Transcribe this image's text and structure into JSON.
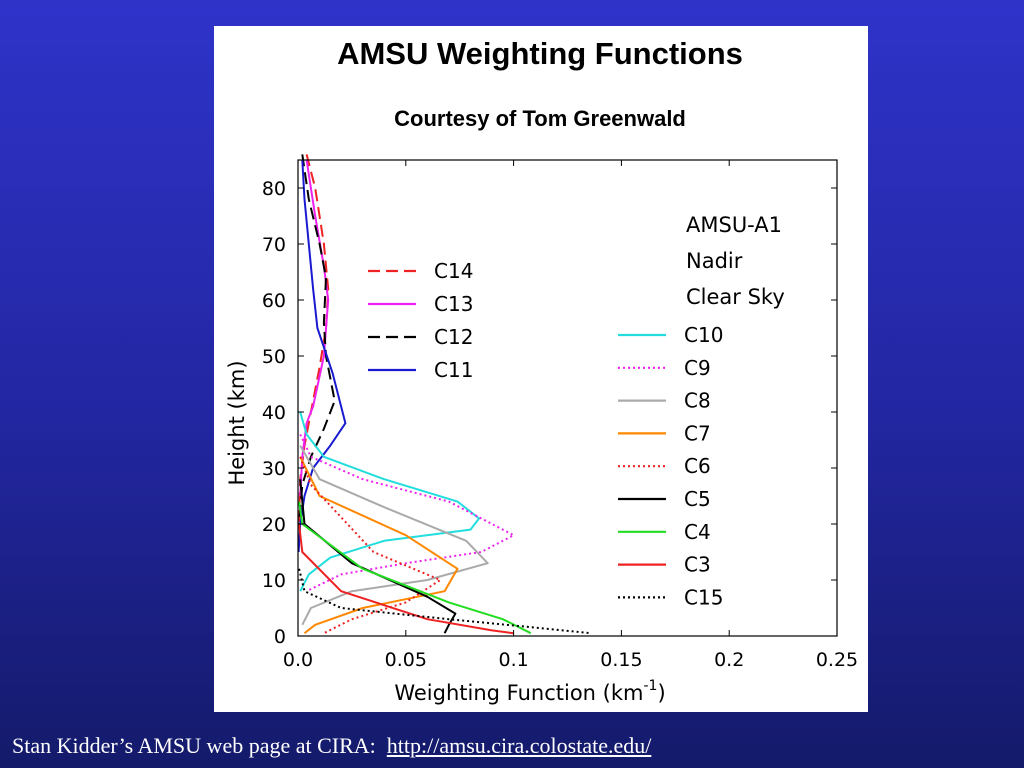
{
  "caption": {
    "text": "Stan Kidder’s AMSU web page at CIRA:",
    "link": "http://amsu.cira.colostate.edu/"
  },
  "chart_data": {
    "type": "line",
    "title": "AMSU Weighting Functions",
    "subtitle": "Courtesy of Tom Greenwald",
    "xlabel": "Weighting Function (km",
    "xlabel_sup": "-1",
    "xlabel_close": ")",
    "ylabel": "Height (km)",
    "xlim": [
      0,
      0.25
    ],
    "ylim": [
      0,
      85
    ],
    "x_ticks": [
      "0.0",
      "0.05",
      "0.1",
      "0.15",
      "0.2",
      "0.25"
    ],
    "x_tick_values": [
      0,
      0.05,
      0.1,
      0.15,
      0.2,
      0.25
    ],
    "y_ticks": [
      "0",
      "10",
      "20",
      "30",
      "40",
      "50",
      "60",
      "70",
      "80"
    ],
    "y_tick_values": [
      0,
      10,
      20,
      30,
      40,
      50,
      60,
      70,
      80
    ],
    "annotation": [
      "AMSU-A1",
      "Nadir",
      "Clear Sky"
    ],
    "series": [
      {
        "name": "C14",
        "color": "#ee2222",
        "dash": "long",
        "x": [
          0.004,
          0.008,
          0.012,
          0.014,
          0.013,
          0.01,
          0.006,
          0.003,
          0.001,
          0.0005
        ],
        "y": [
          86,
          80,
          70,
          62,
          55,
          48,
          40,
          34,
          28,
          20
        ]
      },
      {
        "name": "C13",
        "color": "#ee22ee",
        "dash": "solid",
        "x": [
          0.004,
          0.008,
          0.012,
          0.014,
          0.012,
          0.007,
          0.004,
          0.002,
          0.001
        ],
        "y": [
          85,
          75,
          66,
          60,
          50,
          41,
          38,
          32,
          25
        ]
      },
      {
        "name": "C12",
        "color": "#000000",
        "dash": "long",
        "x": [
          0.002,
          0.005,
          0.01,
          0.013,
          0.012,
          0.013,
          0.017,
          0.012,
          0.006,
          0.002,
          0.0005
        ],
        "y": [
          86,
          78,
          70,
          64,
          56,
          50,
          42,
          37,
          32,
          27,
          20
        ]
      },
      {
        "name": "C11",
        "color": "#1a1ad0",
        "dash": "solid",
        "x": [
          0.002,
          0.003,
          0.005,
          0.007,
          0.009,
          0.016,
          0.022,
          0.015,
          0.007,
          0.003,
          0.001,
          0.0003
        ],
        "y": [
          85,
          78,
          70,
          62,
          55,
          47,
          38,
          34,
          30,
          25,
          20,
          15
        ]
      },
      {
        "name": "C10",
        "color": "#22dddd",
        "dash": "solid",
        "x": [
          0.001,
          0.004,
          0.012,
          0.04,
          0.074,
          0.084,
          0.08,
          0.04,
          0.015,
          0.005,
          0.001
        ],
        "y": [
          40,
          36,
          32,
          28,
          24,
          21,
          19,
          17,
          14,
          11,
          8
        ]
      },
      {
        "name": "C9",
        "color": "#ee22ee",
        "dash": "dot",
        "x": [
          0.001,
          0.006,
          0.03,
          0.07,
          0.1,
          0.085,
          0.05,
          0.02,
          0.004
        ],
        "y": [
          36,
          32,
          28,
          24,
          18,
          15,
          13,
          11,
          8
        ]
      },
      {
        "name": "C8",
        "color": "#aaaaaa",
        "dash": "solid",
        "x": [
          0.001,
          0.01,
          0.04,
          0.078,
          0.088,
          0.06,
          0.025,
          0.006,
          0.002
        ],
        "y": [
          34,
          28,
          23,
          17,
          13,
          10,
          8,
          5,
          2
        ]
      },
      {
        "name": "C7",
        "color": "#ff8800",
        "dash": "solid",
        "x": [
          0.001,
          0.01,
          0.05,
          0.074,
          0.068,
          0.03,
          0.008,
          0.003
        ],
        "y": [
          32,
          25,
          18,
          12,
          8,
          5,
          2,
          0.5
        ]
      },
      {
        "name": "C6",
        "color": "#ee2222",
        "dash": "dot",
        "x": [
          0.001,
          0.006,
          0.035,
          0.066,
          0.05,
          0.025,
          0.012
        ],
        "y": [
          32,
          27,
          15,
          10,
          6,
          3,
          0.5
        ]
      },
      {
        "name": "C5",
        "color": "#000000",
        "dash": "solid",
        "x": [
          0.001,
          0.003,
          0.025,
          0.06,
          0.073,
          0.07,
          0.068
        ],
        "y": [
          28,
          20,
          13,
          7,
          4,
          2,
          0.5
        ]
      },
      {
        "name": "C4",
        "color": "#22dd22",
        "dash": "solid",
        "x": [
          0.0005,
          0.002,
          0.03,
          0.07,
          0.095,
          0.108
        ],
        "y": [
          24,
          20,
          12,
          6,
          3,
          0.5
        ]
      },
      {
        "name": "C3",
        "color": "#ee2222",
        "dash": "solid",
        "x": [
          0.0005,
          0.002,
          0.02,
          0.06,
          0.09,
          0.1
        ],
        "y": [
          20,
          15,
          8,
          3,
          1,
          0.5
        ]
      },
      {
        "name": "C15",
        "color": "#000000",
        "dash": "dot",
        "x": [
          0.0005,
          0.003,
          0.02,
          0.07,
          0.11,
          0.136
        ],
        "y": [
          12,
          8,
          5,
          3,
          1.5,
          0.5
        ]
      }
    ]
  }
}
